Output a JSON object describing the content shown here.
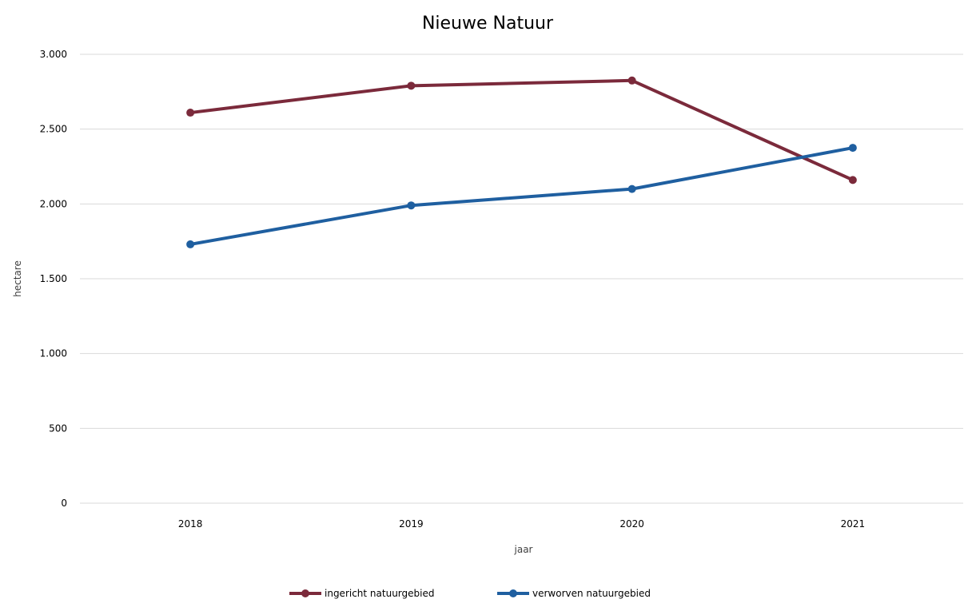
{
  "chart_data": {
    "type": "line",
    "title": "Nieuwe Natuur",
    "xlabel": "jaar",
    "ylabel": "hectare",
    "categories": [
      "2018",
      "2019",
      "2020",
      "2021"
    ],
    "ylim": [
      0,
      3000
    ],
    "yticks": [
      0,
      500,
      1000,
      1500,
      2000,
      2500,
      3000
    ],
    "ytick_labels": [
      "0",
      "500",
      "1.000",
      "1.500",
      "2.000",
      "2.500",
      "3.000"
    ],
    "grid": "horizontal",
    "legend_position": "bottom",
    "series": [
      {
        "name": "ingericht natuurgebied",
        "color": "#7b2a3b",
        "values": [
          2610,
          2790,
          2825,
          2160
        ]
      },
      {
        "name": "verworven natuurgebied",
        "color": "#1f5fa0",
        "values": [
          1730,
          1990,
          2100,
          2375
        ]
      }
    ]
  }
}
